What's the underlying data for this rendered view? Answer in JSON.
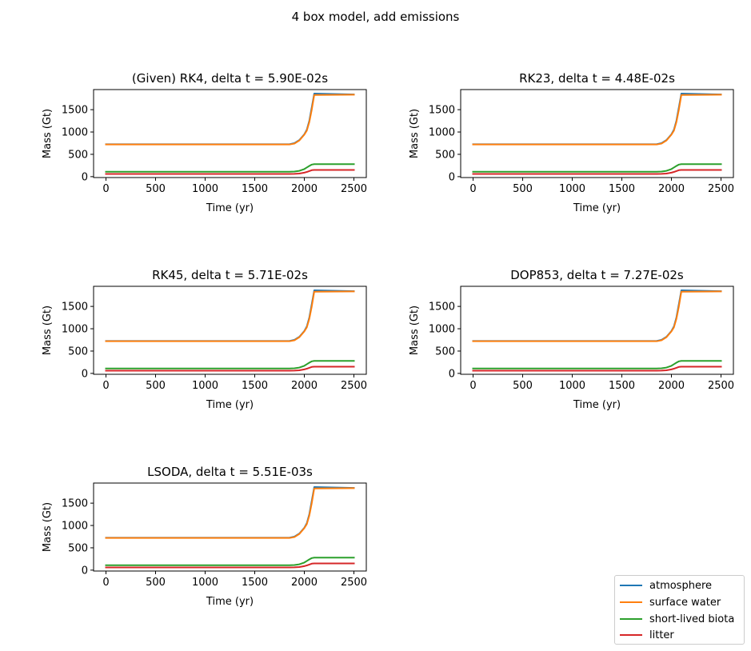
{
  "figure": {
    "suptitle": "4 box model, add emissions",
    "legend": [
      {
        "label": "atmosphere",
        "color": "#1f77b4"
      },
      {
        "label": "surface water",
        "color": "#ff7f0e"
      },
      {
        "label": "short-lived biota",
        "color": "#2ca02c"
      },
      {
        "label": "litter",
        "color": "#d62728"
      }
    ]
  },
  "chart_data": [
    {
      "type": "line",
      "title": "(Given) RK4, delta t = 5.90E-02s",
      "xlabel": "Time (yr)",
      "ylabel": "Mass (Gt)",
      "xlim": [
        -125,
        2625
      ],
      "ylim": [
        -20,
        1950
      ],
      "xticks": [
        0,
        500,
        1000,
        1500,
        2000,
        2500
      ],
      "yticks": [
        0,
        500,
        1000,
        1500
      ],
      "x": [
        0,
        1850,
        1900,
        1950,
        2000,
        2025,
        2050,
        2075,
        2100,
        2500
      ],
      "series": [
        {
          "name": "atmosphere",
          "values": [
            725,
            725,
            750,
            820,
            950,
            1050,
            1250,
            1550,
            1860,
            1840
          ]
        },
        {
          "name": "surface water",
          "values": [
            720,
            720,
            740,
            810,
            940,
            1030,
            1220,
            1500,
            1830,
            1835
          ]
        },
        {
          "name": "short-lived biota",
          "values": [
            110,
            110,
            115,
            130,
            170,
            205,
            240,
            270,
            280,
            280
          ]
        },
        {
          "name": "litter",
          "values": [
            60,
            60,
            62,
            70,
            90,
            105,
            125,
            145,
            150,
            150
          ]
        }
      ]
    },
    {
      "type": "line",
      "title": "RK23, delta t = 4.48E-02s",
      "xlabel": "Time (yr)",
      "ylabel": "Mass (Gt)",
      "xlim": [
        -125,
        2625
      ],
      "ylim": [
        -20,
        1950
      ],
      "xticks": [
        0,
        500,
        1000,
        1500,
        2000,
        2500
      ],
      "yticks": [
        0,
        500,
        1000,
        1500
      ],
      "x": [
        0,
        1850,
        1900,
        1950,
        2000,
        2025,
        2050,
        2075,
        2100,
        2500
      ],
      "series": [
        {
          "name": "atmosphere",
          "values": [
            725,
            725,
            750,
            820,
            950,
            1050,
            1250,
            1550,
            1860,
            1840
          ]
        },
        {
          "name": "surface water",
          "values": [
            720,
            720,
            740,
            810,
            940,
            1030,
            1220,
            1500,
            1830,
            1835
          ]
        },
        {
          "name": "short-lived biota",
          "values": [
            110,
            110,
            115,
            130,
            170,
            205,
            240,
            270,
            280,
            280
          ]
        },
        {
          "name": "litter",
          "values": [
            60,
            60,
            62,
            70,
            90,
            105,
            125,
            145,
            150,
            150
          ]
        }
      ]
    },
    {
      "type": "line",
      "title": "RK45, delta t = 5.71E-02s",
      "xlabel": "Time (yr)",
      "ylabel": "Mass (Gt)",
      "xlim": [
        -125,
        2625
      ],
      "ylim": [
        -20,
        1950
      ],
      "xticks": [
        0,
        500,
        1000,
        1500,
        2000,
        2500
      ],
      "yticks": [
        0,
        500,
        1000,
        1500
      ],
      "x": [
        0,
        1850,
        1900,
        1950,
        2000,
        2025,
        2050,
        2075,
        2100,
        2500
      ],
      "series": [
        {
          "name": "atmosphere",
          "values": [
            725,
            725,
            750,
            820,
            950,
            1050,
            1250,
            1550,
            1860,
            1840
          ]
        },
        {
          "name": "surface water",
          "values": [
            720,
            720,
            740,
            810,
            940,
            1030,
            1220,
            1500,
            1830,
            1835
          ]
        },
        {
          "name": "short-lived biota",
          "values": [
            110,
            110,
            115,
            130,
            170,
            205,
            240,
            270,
            280,
            280
          ]
        },
        {
          "name": "litter",
          "values": [
            60,
            60,
            62,
            70,
            90,
            105,
            125,
            145,
            150,
            150
          ]
        }
      ]
    },
    {
      "type": "line",
      "title": "DOP853, delta t = 7.27E-02s",
      "xlabel": "Time (yr)",
      "ylabel": "Mass (Gt)",
      "xlim": [
        -125,
        2625
      ],
      "ylim": [
        -20,
        1950
      ],
      "xticks": [
        0,
        500,
        1000,
        1500,
        2000,
        2500
      ],
      "yticks": [
        0,
        500,
        1000,
        1500
      ],
      "x": [
        0,
        1850,
        1900,
        1950,
        2000,
        2025,
        2050,
        2075,
        2100,
        2500
      ],
      "series": [
        {
          "name": "atmosphere",
          "values": [
            725,
            725,
            750,
            820,
            950,
            1050,
            1250,
            1550,
            1860,
            1840
          ]
        },
        {
          "name": "surface water",
          "values": [
            720,
            720,
            740,
            810,
            940,
            1030,
            1220,
            1500,
            1830,
            1835
          ]
        },
        {
          "name": "short-lived biota",
          "values": [
            110,
            110,
            115,
            130,
            170,
            205,
            240,
            270,
            280,
            280
          ]
        },
        {
          "name": "litter",
          "values": [
            60,
            60,
            62,
            70,
            90,
            105,
            125,
            145,
            150,
            150
          ]
        }
      ]
    },
    {
      "type": "line",
      "title": "LSODA, delta t = 5.51E-03s",
      "xlabel": "Time (yr)",
      "ylabel": "Mass (Gt)",
      "xlim": [
        -125,
        2625
      ],
      "ylim": [
        -20,
        1950
      ],
      "xticks": [
        0,
        500,
        1000,
        1500,
        2000,
        2500
      ],
      "yticks": [
        0,
        500,
        1000,
        1500
      ],
      "x": [
        0,
        1850,
        1900,
        1950,
        2000,
        2025,
        2050,
        2075,
        2100,
        2500
      ],
      "series": [
        {
          "name": "atmosphere",
          "values": [
            725,
            725,
            750,
            820,
            950,
            1050,
            1250,
            1550,
            1860,
            1840
          ]
        },
        {
          "name": "surface water",
          "values": [
            720,
            720,
            740,
            810,
            940,
            1030,
            1220,
            1500,
            1830,
            1835
          ]
        },
        {
          "name": "short-lived biota",
          "values": [
            110,
            110,
            115,
            130,
            170,
            205,
            240,
            270,
            280,
            280
          ]
        },
        {
          "name": "litter",
          "values": [
            60,
            60,
            62,
            70,
            90,
            105,
            125,
            145,
            150,
            150
          ]
        }
      ]
    }
  ]
}
